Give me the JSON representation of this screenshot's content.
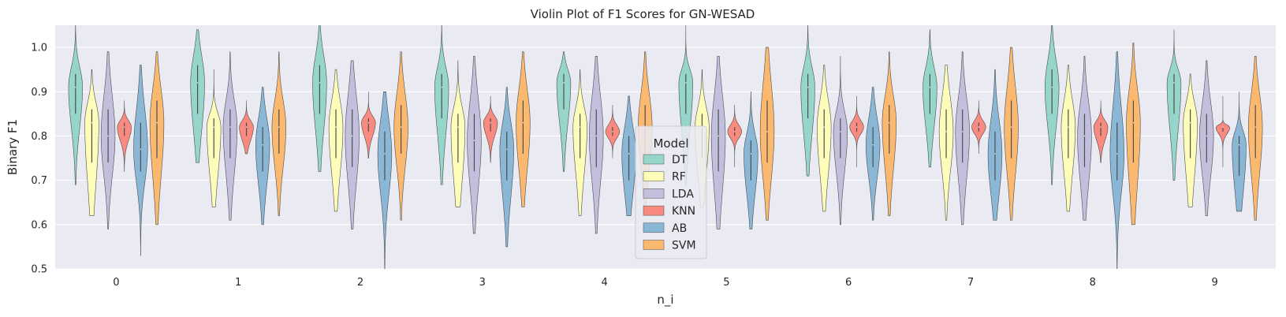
{
  "chart_data": {
    "type": "violin",
    "title": "Violin Plot of F1 Scores for GN-WESAD",
    "xlabel": "n_i",
    "ylabel": "Binary F1",
    "ylim": [
      0.5,
      1.05
    ],
    "yticks": [
      "0.5",
      "0.6",
      "0.7",
      "0.8",
      "0.9",
      "1.0"
    ],
    "categories": [
      "0",
      "1",
      "2",
      "3",
      "4",
      "5",
      "6",
      "7",
      "8",
      "9"
    ],
    "grid": true,
    "legend": {
      "title": "Model",
      "placement": "center"
    },
    "series": [
      {
        "name": "DT",
        "color": "#8dd3c7",
        "min": [
          0.69,
          0.74,
          0.72,
          0.69,
          0.72,
          0.69,
          0.71,
          0.73,
          0.69,
          0.7
        ],
        "q1": [
          0.85,
          0.85,
          0.85,
          0.84,
          0.86,
          0.85,
          0.84,
          0.85,
          0.85,
          0.85
        ],
        "median": [
          0.91,
          0.92,
          0.92,
          0.91,
          0.92,
          0.92,
          0.91,
          0.91,
          0.91,
          0.92
        ],
        "q3": [
          0.94,
          0.96,
          0.96,
          0.94,
          0.94,
          0.94,
          0.94,
          0.94,
          0.95,
          0.94
        ],
        "max": [
          1.05,
          1.04,
          1.05,
          1.05,
          0.99,
          1.05,
          1.05,
          1.04,
          1.05,
          1.04
        ]
      },
      {
        "name": "RF",
        "color": "#ffffb3",
        "min": [
          0.62,
          0.64,
          0.63,
          0.64,
          0.62,
          0.64,
          0.63,
          0.61,
          0.63,
          0.64
        ],
        "q1": [
          0.74,
          0.75,
          0.75,
          0.74,
          0.75,
          0.75,
          0.75,
          0.75,
          0.75,
          0.75
        ],
        "median": [
          0.83,
          0.82,
          0.82,
          0.82,
          0.82,
          0.82,
          0.82,
          0.81,
          0.82,
          0.83
        ],
        "q3": [
          0.86,
          0.84,
          0.86,
          0.85,
          0.85,
          0.85,
          0.86,
          0.86,
          0.86,
          0.86
        ],
        "max": [
          0.95,
          0.95,
          0.95,
          0.97,
          0.95,
          0.95,
          0.96,
          0.96,
          0.96,
          0.94
        ]
      },
      {
        "name": "LDA",
        "color": "#bebada",
        "min": [
          0.59,
          0.61,
          0.59,
          0.58,
          0.58,
          0.59,
          0.6,
          0.6,
          0.61,
          0.62
        ],
        "q1": [
          0.74,
          0.75,
          0.73,
          0.72,
          0.73,
          0.72,
          0.75,
          0.74,
          0.73,
          0.74
        ],
        "median": [
          0.8,
          0.82,
          0.8,
          0.79,
          0.8,
          0.8,
          0.81,
          0.81,
          0.8,
          0.8
        ],
        "q3": [
          0.86,
          0.86,
          0.86,
          0.85,
          0.86,
          0.86,
          0.84,
          0.86,
          0.85,
          0.85
        ],
        "max": [
          0.99,
          0.99,
          0.97,
          0.98,
          0.98,
          0.98,
          0.98,
          0.99,
          0.98,
          0.97
        ]
      },
      {
        "name": "KNN",
        "color": "#fb8072",
        "min": [
          0.72,
          0.76,
          0.75,
          0.74,
          0.75,
          0.73,
          0.73,
          0.76,
          0.74,
          0.73
        ],
        "q1": [
          0.8,
          0.8,
          0.81,
          0.81,
          0.8,
          0.8,
          0.81,
          0.81,
          0.8,
          0.81
        ],
        "median": [
          0.82,
          0.82,
          0.83,
          0.83,
          0.81,
          0.81,
          0.82,
          0.82,
          0.82,
          0.82
        ],
        "q3": [
          0.83,
          0.83,
          0.84,
          0.84,
          0.82,
          0.82,
          0.83,
          0.83,
          0.83,
          0.82
        ],
        "max": [
          0.88,
          0.88,
          0.9,
          0.89,
          0.87,
          0.87,
          0.89,
          0.88,
          0.88,
          0.89
        ]
      },
      {
        "name": "AB",
        "color": "#80b1d3",
        "min": [
          0.53,
          0.6,
          0.47,
          0.55,
          0.62,
          0.59,
          0.61,
          0.61,
          0.47,
          0.63
        ],
        "q1": [
          0.72,
          0.72,
          0.7,
          0.7,
          0.7,
          0.7,
          0.73,
          0.7,
          0.7,
          0.71
        ],
        "median": [
          0.77,
          0.78,
          0.76,
          0.77,
          0.76,
          0.76,
          0.78,
          0.76,
          0.76,
          0.78
        ],
        "q3": [
          0.83,
          0.82,
          0.81,
          0.81,
          0.8,
          0.79,
          0.82,
          0.81,
          0.83,
          0.8
        ],
        "max": [
          0.96,
          0.91,
          0.9,
          0.91,
          0.89,
          0.9,
          0.91,
          0.95,
          0.99,
          0.9
        ]
      },
      {
        "name": "SVM",
        "color": "#fdb462",
        "min": [
          0.6,
          0.62,
          0.61,
          0.64,
          0.63,
          0.61,
          0.62,
          0.61,
          0.6,
          0.61
        ],
        "q1": [
          0.75,
          0.76,
          0.76,
          0.76,
          0.76,
          0.74,
          0.76,
          0.75,
          0.74,
          0.75
        ],
        "median": [
          0.83,
          0.82,
          0.82,
          0.83,
          0.82,
          0.81,
          0.83,
          0.82,
          0.83,
          0.82
        ],
        "q3": [
          0.88,
          0.86,
          0.87,
          0.88,
          0.87,
          0.88,
          0.87,
          0.88,
          0.88,
          0.87
        ],
        "max": [
          0.99,
          0.99,
          0.99,
          0.99,
          0.99,
          1.0,
          0.99,
          1.0,
          1.01,
          0.98
        ]
      }
    ]
  }
}
